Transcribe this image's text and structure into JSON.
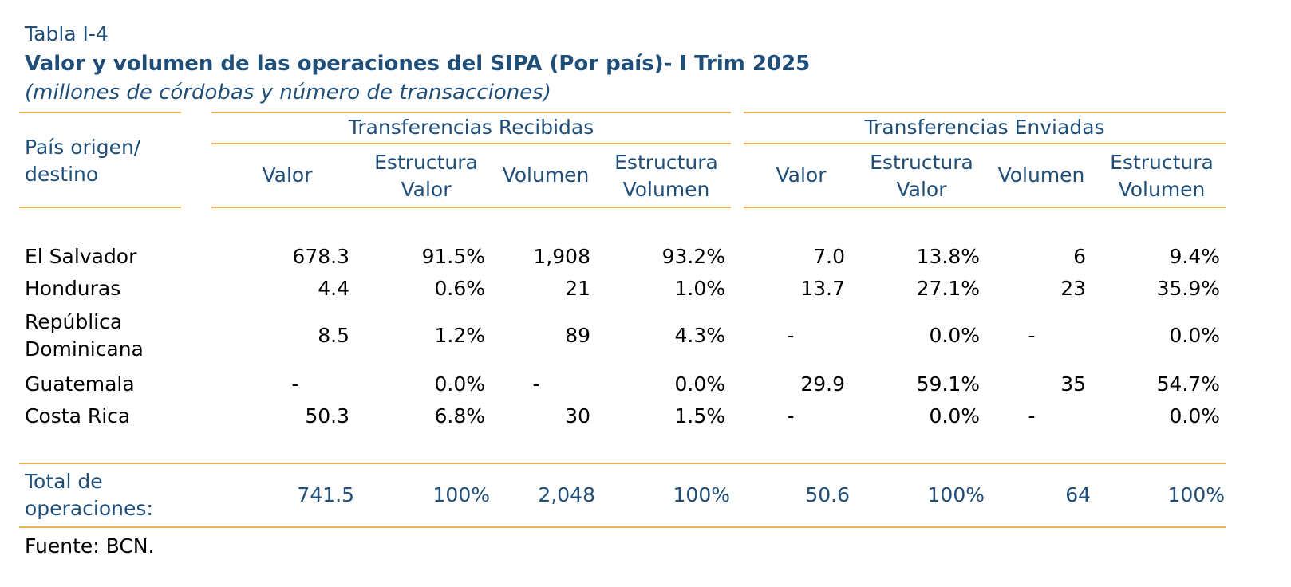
{
  "table": {
    "caption": "Tabla I-4",
    "title": "Valor y volumen de las operaciones del SIPA (Por país)- I Trim 2025",
    "subtitle": "(millones de córdobas y número de transacciones)",
    "row_header": [
      "País origen/",
      "destino"
    ],
    "groups": {
      "received": "Transferencias Recibidas",
      "sent": "Transferencias Enviadas"
    },
    "columns": {
      "valor": "Valor",
      "estructura_valor": [
        "Estructura",
        "Valor"
      ],
      "volumen": "Volumen",
      "estructura_volumen": [
        "Estructura",
        "Volumen"
      ]
    },
    "rows": [
      {
        "name": [
          "El Salvador"
        ],
        "values": [
          "678.3",
          "91.5%",
          "1,908",
          "93.2%",
          "7.0",
          "13.8%",
          "6",
          "9.4%"
        ]
      },
      {
        "name": [
          "Honduras"
        ],
        "values": [
          "4.4",
          "0.6%",
          "21",
          "1.0%",
          "13.7",
          "27.1%",
          "23",
          "35.9%"
        ]
      },
      {
        "name": [
          "República",
          "Dominicana"
        ],
        "values": [
          "8.5",
          "1.2%",
          "89",
          "4.3%",
          "-",
          "0.0%",
          "-",
          "0.0%"
        ]
      },
      {
        "name": [
          "Guatemala"
        ],
        "values": [
          "-",
          "0.0%",
          "-",
          "0.0%",
          "29.9",
          "59.1%",
          "35",
          "54.7%"
        ]
      },
      {
        "name": [
          "Costa Rica"
        ],
        "values": [
          "50.3",
          "6.8%",
          "30",
          "1.5%",
          "-",
          "0.0%",
          "-",
          "0.0%"
        ]
      }
    ],
    "total": {
      "name": [
        "Total de",
        "operaciones:"
      ],
      "values": [
        "741.5",
        "100%",
        "2,048",
        "100%",
        "50.6",
        "100%",
        "64",
        "100%"
      ]
    },
    "source": "Fuente: BCN.",
    "colors": {
      "accent_rule": "#e5b551",
      "heading_blue": "#1f4e79"
    }
  }
}
